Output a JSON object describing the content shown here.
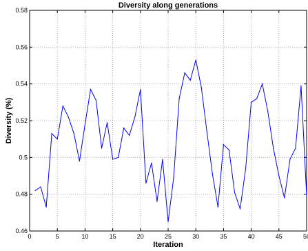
{
  "chart_data": {
    "type": "line",
    "title": "Diversity along generations",
    "xlabel": "Iteration",
    "ylabel": "Diversity (%)",
    "xlim": [
      0,
      50
    ],
    "ylim": [
      0.46,
      0.58
    ],
    "xticks": [
      "0",
      "5",
      "10",
      "15",
      "20",
      "25",
      "30",
      "35",
      "40",
      "45",
      "50"
    ],
    "yticks": [
      "0.46",
      "0.48",
      "0.5",
      "0.52",
      "0.54",
      "0.56",
      "0.58"
    ],
    "grid": true,
    "series": [
      {
        "color": "#0000ff",
        "x": [
          1,
          2,
          3,
          4,
          5,
          6,
          7,
          8,
          9,
          10,
          11,
          12,
          13,
          14,
          15,
          16,
          17,
          18,
          19,
          20,
          21,
          22,
          23,
          24,
          25,
          26,
          27,
          28,
          29,
          30,
          31,
          32,
          33,
          34,
          35,
          36,
          37,
          38,
          39,
          40,
          41,
          42,
          43,
          44,
          45,
          46,
          47,
          48,
          49,
          50
        ],
        "y": [
          0.482,
          0.484,
          0.473,
          0.513,
          0.51,
          0.528,
          0.522,
          0.513,
          0.498,
          0.518,
          0.537,
          0.531,
          0.505,
          0.519,
          0.499,
          0.5,
          0.516,
          0.512,
          0.522,
          0.537,
          0.486,
          0.497,
          0.476,
          0.499,
          0.465,
          0.489,
          0.532,
          0.546,
          0.542,
          0.553,
          0.538,
          0.514,
          0.491,
          0.473,
          0.507,
          0.504,
          0.481,
          0.472,
          0.494,
          0.53,
          0.532,
          0.54,
          0.525,
          0.505,
          0.49,
          0.478,
          0.499,
          0.505,
          0.539,
          0.479
        ]
      }
    ]
  }
}
